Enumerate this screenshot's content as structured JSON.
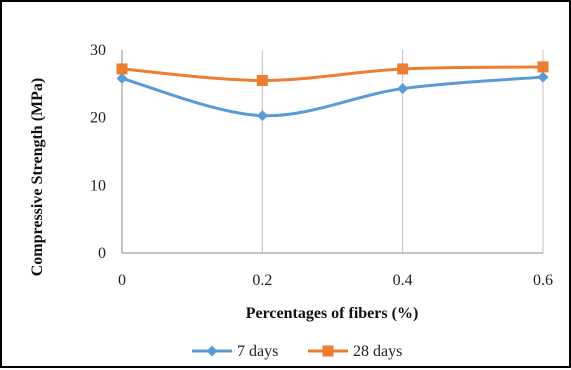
{
  "chart_data": {
    "type": "line",
    "x": [
      0,
      0.2,
      0.4,
      0.6
    ],
    "x_tick_labels": [
      "0",
      "0.2",
      "0.4",
      "0.6"
    ],
    "y_tick_labels": [
      "0",
      "10",
      "20",
      "30"
    ],
    "xlabel": "Percentages of fibers (%)",
    "ylabel": "Compressive Strength (MPa)",
    "ylim": [
      0,
      30
    ],
    "grid": "vertical",
    "legend_position": "bottom",
    "series": [
      {
        "name": "7 days",
        "values": [
          25.8,
          20.3,
          24.3,
          26.0
        ],
        "color": "#5B9BD5",
        "marker": "diamond"
      },
      {
        "name": "28 days",
        "values": [
          27.2,
          25.5,
          27.2,
          27.5
        ],
        "color": "#ED7D31",
        "marker": "square"
      }
    ]
  }
}
